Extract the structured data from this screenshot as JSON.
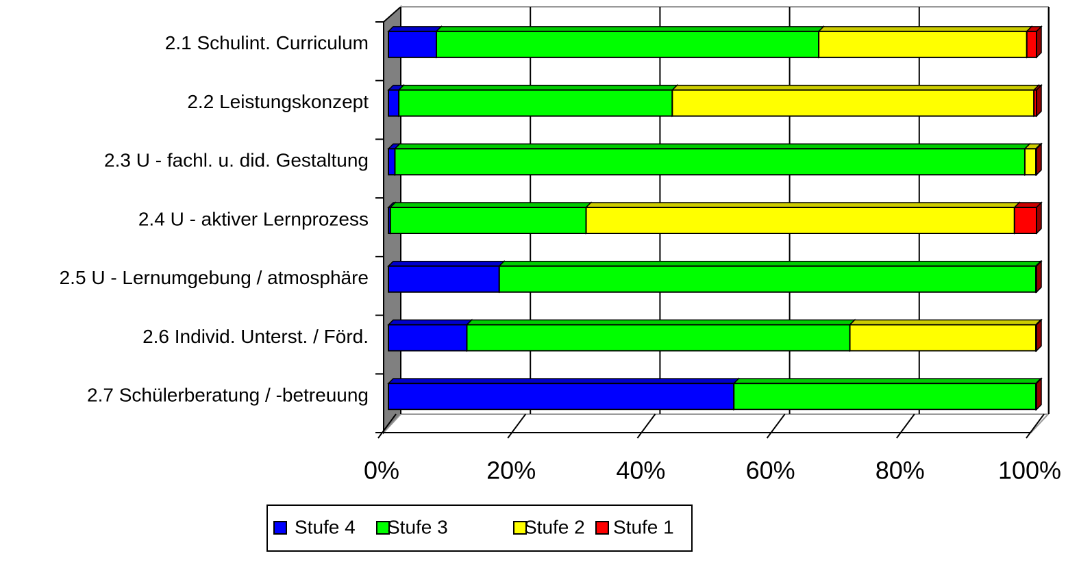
{
  "chart_data": {
    "type": "stacked_bar_horizontal",
    "categories": [
      "2.1 Schulint. Curriculum",
      "2.2 Leistungskonzept",
      "2.3 U - fachl. u. did. Gestaltung",
      "2.4 U - aktiver Lernprozess",
      "2.5 U - Lernumgebung / atmosphäre",
      "2.6 Individ. Unterst. / Förd.",
      "2.7 Schülerberatung / -betreuung"
    ],
    "series": [
      {
        "name": "Stufe 4",
        "color": "#0000ff",
        "values": [
          7.4,
          1.6,
          1.0,
          0.3,
          17.1,
          12.1,
          53.3
        ]
      },
      {
        "name": "Stufe 3",
        "color": "#00ff00",
        "values": [
          59.0,
          42.2,
          97.2,
          30.2,
          82.8,
          59.1,
          46.6
        ]
      },
      {
        "name": "Stufe 2",
        "color": "#ffff00",
        "values": [
          32.1,
          55.8,
          1.7,
          66.1,
          0,
          28.7,
          0
        ]
      },
      {
        "name": "Stufe 1",
        "color": "#ff0000",
        "values": [
          1.5,
          0.4,
          0.1,
          3.4,
          0.1,
          0.1,
          0.1
        ]
      }
    ],
    "xlim": [
      0,
      100
    ],
    "xticks": [
      {
        "value": 0,
        "label": "0%"
      },
      {
        "value": 20,
        "label": "20%"
      },
      {
        "value": 40,
        "label": "40%"
      },
      {
        "value": 60,
        "label": "60%"
      },
      {
        "value": 80,
        "label": "80%"
      },
      {
        "value": 100,
        "label": "100%"
      }
    ],
    "grid": true,
    "legend": "bottom"
  }
}
